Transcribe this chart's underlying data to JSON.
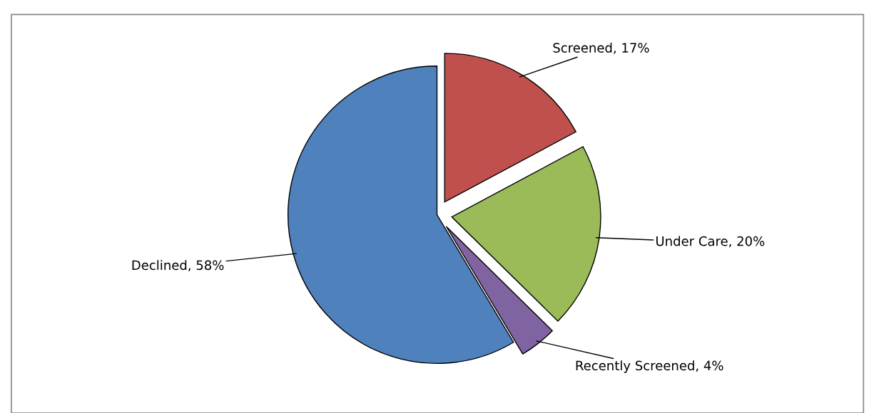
{
  "chart_data": {
    "type": "pie",
    "categories": [
      "Screened",
      "Under Care",
      "Recently Screened",
      "Declined"
    ],
    "values": [
      17,
      20,
      4,
      58
    ],
    "value_labels": [
      "17%",
      "20%",
      "4%",
      "58%"
    ],
    "colors": [
      "#c0504d",
      "#9bbb59",
      "#8064a2",
      "#4f81bd"
    ],
    "legend": false
  }
}
